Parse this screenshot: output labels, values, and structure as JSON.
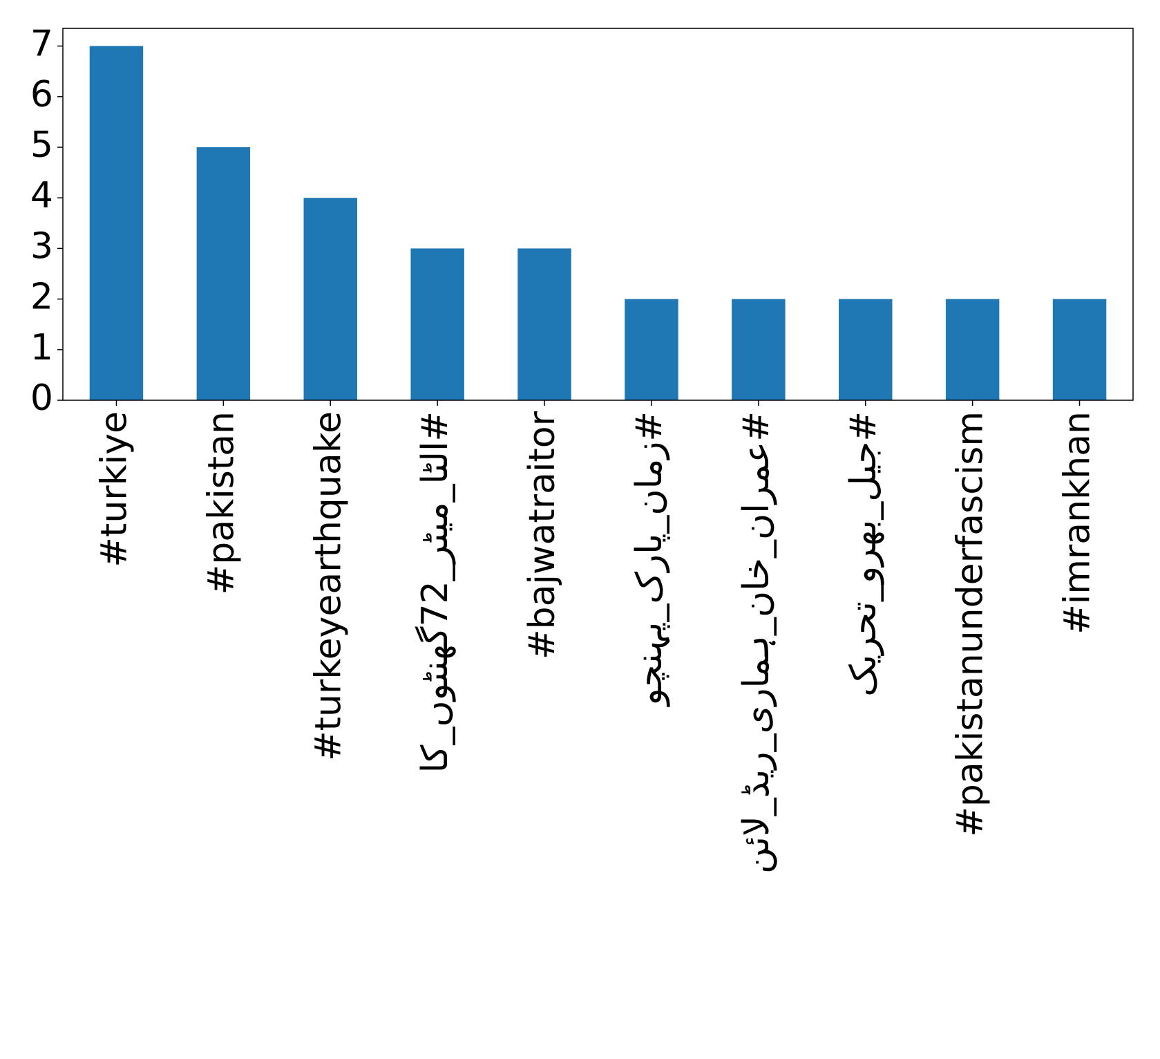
{
  "chart_data": {
    "type": "bar",
    "categories": [
      "#turkiye",
      "#pakistan",
      "#turkeyearthquake",
      "#الٹا_میٹر_72گھنٹوں_کا",
      "#bajwatraitor",
      "#زمان_پارک_پہنچو",
      "#عمران_خان_ہماری_ریڈ_لائن",
      "#جیل_بھرو_تحریک",
      "#pakistanunderfascism",
      "#imrankhan"
    ],
    "values": [
      7,
      5,
      4,
      3,
      3,
      2,
      2,
      2,
      2,
      2
    ],
    "color": "#1f77b4",
    "ylim": [
      0,
      7.35
    ],
    "yticks": [
      0,
      1,
      2,
      3,
      4,
      5,
      6,
      7
    ],
    "grid": false
  }
}
